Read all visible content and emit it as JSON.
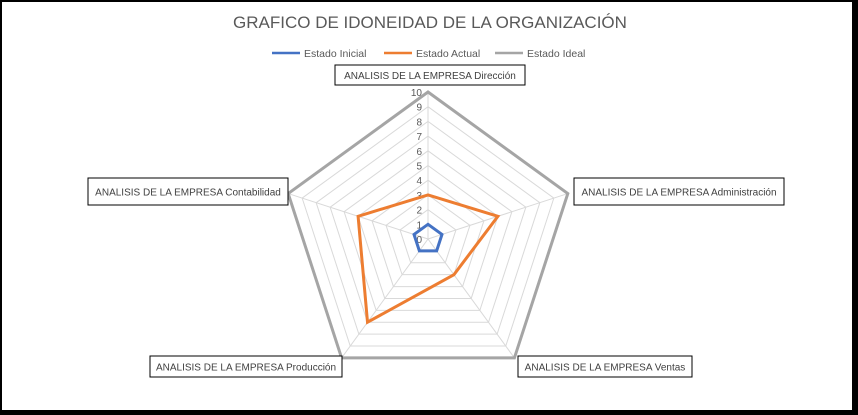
{
  "chart_data": {
    "type": "radar",
    "title": "GRAFICO DE IDONEIDAD DE LA ORGANIZACIÓN",
    "categories": [
      "ANALISIS DE LA EMPRESA Dirección",
      "ANALISIS DE LA EMPRESA Administración",
      "ANALISIS DE LA EMPRESA Ventas",
      "ANALISIS DE LA EMPRESA Producción",
      "ANALISIS DE LA EMPRESA Contabilidad"
    ],
    "series": [
      {
        "name": "Estado Inicial",
        "color": "#4472C4",
        "values": [
          1,
          1,
          1,
          1,
          1
        ]
      },
      {
        "name": "Estado Actual",
        "color": "#ED7D31",
        "values": [
          3,
          5,
          3,
          7,
          5
        ]
      },
      {
        "name": "Estado Ideal",
        "color": "#A5A5A5",
        "values": [
          10,
          10,
          10,
          10,
          10
        ]
      }
    ],
    "rlim": [
      0,
      10
    ],
    "ticks": [
      "0",
      "1",
      "2",
      "3",
      "4",
      "5",
      "6",
      "7",
      "8",
      "9",
      "10"
    ],
    "grid": true,
    "legend": "top"
  }
}
